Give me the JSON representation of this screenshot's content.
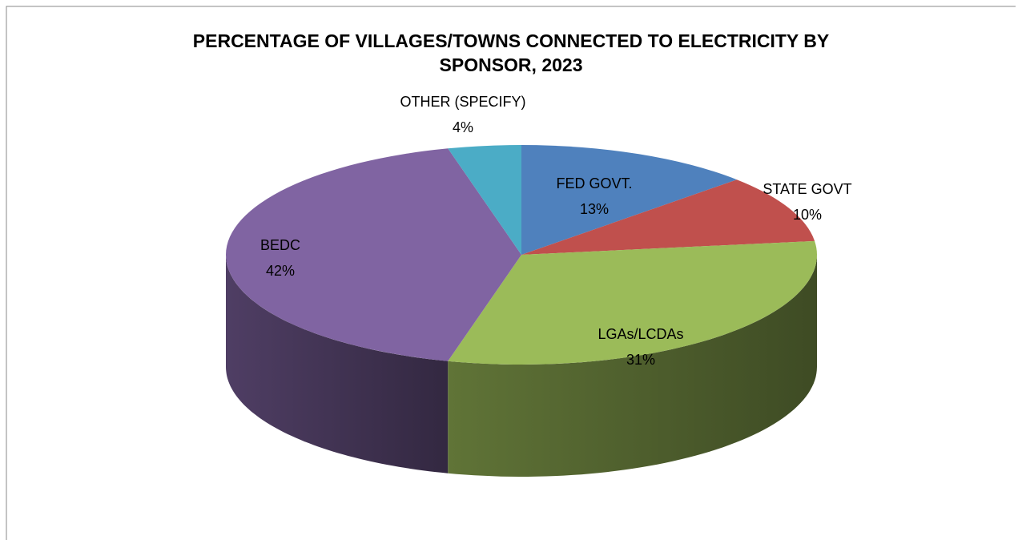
{
  "chart_data": {
    "type": "pie3d",
    "title": "PERCENTAGE OF VILLAGES/TOWNS CONNECTED TO ELECTRICITY BY SPONSOR, 2023",
    "categories": [
      "FED GOVT.",
      "STATE GOVT",
      "LGAs/LCDAs",
      "BEDC",
      "OTHER (SPECIFY)"
    ],
    "values": [
      13,
      10,
      31,
      42,
      4
    ],
    "value_labels": [
      "13%",
      "10%",
      "31%",
      "42%",
      "4%"
    ],
    "colors": [
      "#4f81bd",
      "#c0504d",
      "#9bbb59",
      "#8064a2",
      "#4bacc6"
    ]
  }
}
